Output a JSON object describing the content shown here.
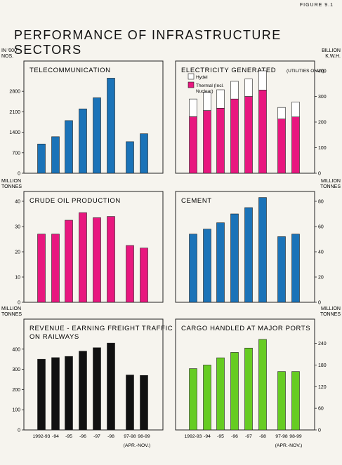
{
  "figure_label": "FIGURE 9.1",
  "page_title": "PERFORMANCE OF INFRASTRUCTURE SECTORS",
  "x_tick_labels": [
    "1992-93",
    "-94",
    "-95",
    "-96",
    "-97",
    "-98",
    "97-98",
    "98-99"
  ],
  "x_note": "(APR.-NOV.)",
  "colors": {
    "telecom": "#1b73b8",
    "electricity_thermal": "#e8177f",
    "electricity_hydel": "#ffffff",
    "crude": "#e8177f",
    "cement": "#1b73b8",
    "railways": "#111111",
    "ports": "#66cc22"
  },
  "chart_data": [
    {
      "type": "bar",
      "title": "TELECOMMUNICATION",
      "unit_label": [
        "IN '000",
        "NOS."
      ],
      "unit_side": "left",
      "categories": [
        "1992-93",
        "-94",
        "-95",
        "-96",
        "-97",
        "-98",
        "97-98",
        "98-99"
      ],
      "values": [
        1000,
        1250,
        1800,
        2200,
        2580,
        3250,
        1080,
        1350
      ],
      "ylim": [
        0,
        3500
      ],
      "yticks": [
        0,
        700,
        1400,
        2100,
        2800
      ]
    },
    {
      "type": "bar",
      "stacked": true,
      "title": "ELECTRICITY GENERATED",
      "title_suffix": "(UTILITIES ONLY)",
      "unit_label": [
        "BILLION",
        "K.W.H."
      ],
      "unit_side": "right",
      "categories": [
        "1992-93",
        "-94",
        "-95",
        "-96",
        "-97",
        "-98",
        "97-98",
        "98-99"
      ],
      "series": [
        {
          "name": "Thermal (Incl. Nuclear)",
          "values": [
            221,
            245,
            254,
            290,
            300,
            325,
            212,
            220
          ]
        },
        {
          "name": "Hydel",
          "values": [
            69,
            71,
            72,
            69,
            68,
            75,
            45,
            58
          ]
        }
      ],
      "legend": [
        "Hydel",
        "Thermal (Incl.",
        "Nuclear)"
      ],
      "ylim": [
        0,
        400
      ],
      "yticks": [
        0,
        100,
        200,
        300,
        400
      ]
    },
    {
      "type": "bar",
      "title": "CRUDE OIL PRODUCTION",
      "unit_label": [
        "MILLION",
        "TONNES"
      ],
      "unit_side": "left",
      "categories": [
        "1992-93",
        "-94",
        "-95",
        "-96",
        "-97",
        "-98",
        "97-98",
        "98-99"
      ],
      "values": [
        27,
        27,
        32.5,
        35.5,
        33.5,
        34,
        22.5,
        21.5
      ],
      "ylim": [
        0,
        40
      ],
      "yticks": [
        0,
        10,
        20,
        30,
        40
      ]
    },
    {
      "type": "bar",
      "title": "CEMENT",
      "unit_label": [
        "MILLION",
        "TONNES"
      ],
      "unit_side": "right",
      "categories": [
        "1992-93",
        "-94",
        "-95",
        "-96",
        "-97",
        "-98",
        "97-98",
        "98-99"
      ],
      "values": [
        54,
        58,
        63,
        70,
        75,
        83,
        52,
        54
      ],
      "ylim": [
        0,
        80
      ],
      "yticks": [
        0,
        20,
        40,
        60,
        80
      ]
    },
    {
      "type": "bar",
      "title": "REVENUE - EARNING FREIGHT TRAFFIC",
      "title_line2": "ON RAILWAYS",
      "unit_label": [
        "MILLION",
        "TONNES"
      ],
      "unit_side": "left",
      "categories": [
        "1992-93",
        "-94",
        "-95",
        "-96",
        "-97",
        "-98",
        "97-98",
        "98-99"
      ],
      "values": [
        350,
        358,
        364,
        390,
        407,
        430,
        272,
        270
      ],
      "ylim": [
        0,
        500
      ],
      "yticks": [
        0,
        100,
        200,
        300,
        400
      ]
    },
    {
      "type": "bar",
      "title": "CARGO HANDLED AT MAJOR PORTS",
      "unit_label": [
        "MILLION",
        "TONNES"
      ],
      "unit_side": "right",
      "categories": [
        "1992-93",
        "-94",
        "-95",
        "-96",
        "-97",
        "-98",
        "97-98",
        "98-99"
      ],
      "values": [
        170,
        180,
        200,
        215,
        227,
        251,
        162,
        162
      ],
      "ylim": [
        0,
        280
      ],
      "yticks": [
        0,
        60,
        120,
        180,
        240
      ]
    }
  ]
}
